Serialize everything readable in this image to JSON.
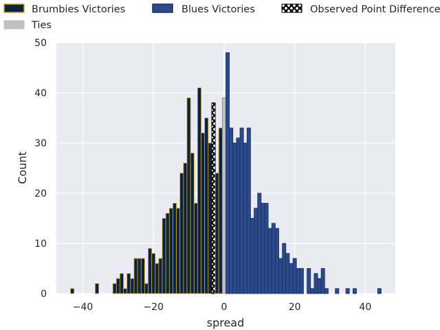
{
  "chart_data": {
    "type": "bar",
    "subtype": "histogram",
    "title": "",
    "xlabel": "spread",
    "ylabel": "Count",
    "xlim": [
      -47.5,
      48.5
    ],
    "ylim": [
      0,
      50
    ],
    "xticks": [
      -40,
      -20,
      0,
      20,
      40
    ],
    "yticks": [
      0,
      10,
      20,
      30,
      40,
      50
    ],
    "grid": true,
    "legend_placement": "top",
    "bin_width": 1,
    "series": [
      {
        "name": "Brumbies Victories",
        "fill": "#0c2340",
        "edge": "#d4a420",
        "bins": [
          [
            -43,
            1
          ],
          [
            -36,
            2
          ],
          [
            -31,
            2
          ],
          [
            -30,
            3
          ],
          [
            -29,
            4
          ],
          [
            -28,
            1
          ],
          [
            -27,
            4
          ],
          [
            -26,
            3
          ],
          [
            -25,
            7
          ],
          [
            -24,
            7
          ],
          [
            -23,
            7
          ],
          [
            -22,
            2
          ],
          [
            -21,
            9
          ],
          [
            -20,
            8
          ],
          [
            -19,
            6
          ],
          [
            -18,
            7
          ],
          [
            -17,
            15
          ],
          [
            -16,
            16
          ],
          [
            -15,
            17
          ],
          [
            -14,
            18
          ],
          [
            -13,
            17
          ],
          [
            -12,
            24
          ],
          [
            -11,
            26
          ],
          [
            -10,
            39
          ],
          [
            -9,
            28
          ],
          [
            -8,
            18
          ],
          [
            -7,
            41
          ],
          [
            -6,
            32
          ],
          [
            -5,
            35
          ],
          [
            -4,
            30
          ],
          [
            -3,
            38
          ],
          [
            -2,
            24
          ],
          [
            -1,
            33
          ]
        ]
      },
      {
        "name": "Ties",
        "fill": "#c0c0c0",
        "edge": "#888888",
        "bins": [
          [
            0,
            39
          ]
        ]
      },
      {
        "name": "Blues Victories",
        "fill": "#2b4a8c",
        "edge": "#1a2f60",
        "bins": [
          [
            1,
            48
          ],
          [
            2,
            33
          ],
          [
            3,
            30
          ],
          [
            4,
            31
          ],
          [
            5,
            33
          ],
          [
            6,
            30
          ],
          [
            7,
            33
          ],
          [
            8,
            15
          ],
          [
            9,
            17
          ],
          [
            10,
            20
          ],
          [
            11,
            18
          ],
          [
            12,
            18
          ],
          [
            13,
            13
          ],
          [
            14,
            14
          ],
          [
            15,
            13
          ],
          [
            16,
            7
          ],
          [
            17,
            10
          ],
          [
            18,
            8
          ],
          [
            19,
            6
          ],
          [
            20,
            7
          ],
          [
            21,
            5
          ],
          [
            22,
            5
          ],
          [
            24,
            5
          ],
          [
            25,
            1
          ],
          [
            26,
            4
          ],
          [
            27,
            3
          ],
          [
            28,
            5
          ],
          [
            29,
            1
          ],
          [
            32,
            1
          ],
          [
            35,
            1
          ],
          [
            37,
            1
          ],
          [
            44,
            1
          ]
        ]
      }
    ],
    "observed_point_difference": {
      "name": "Observed Point Difference",
      "value": -3,
      "count": 38
    }
  }
}
